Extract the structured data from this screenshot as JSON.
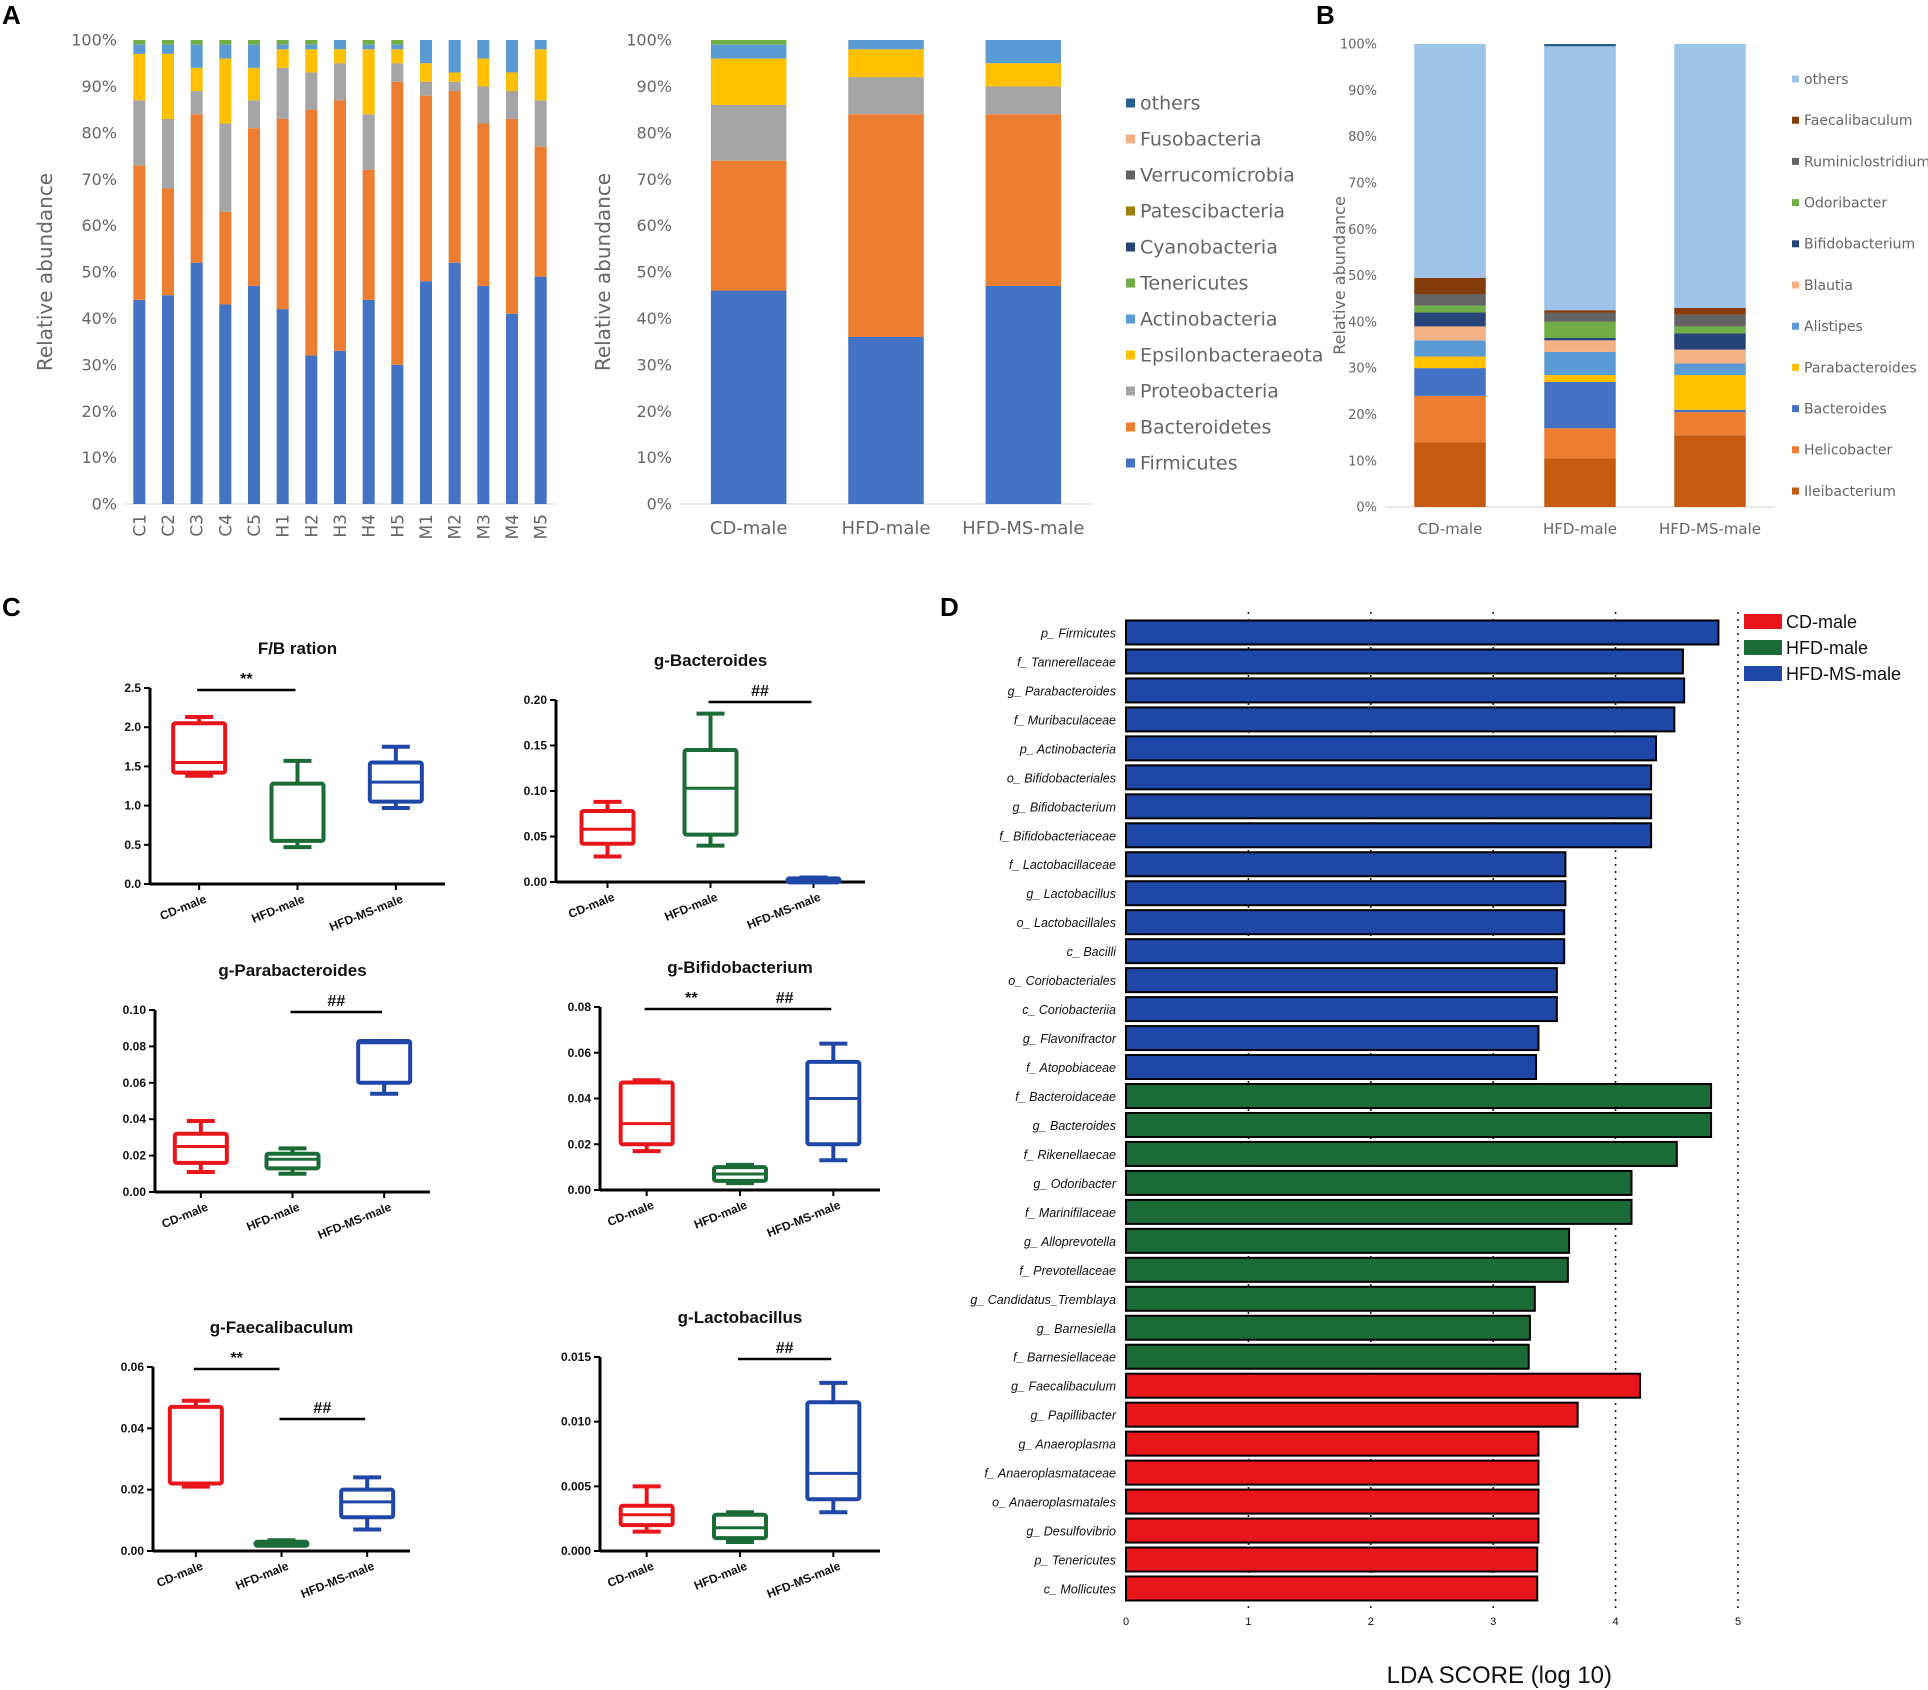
{
  "panel_labels": {
    "A": "A",
    "B": "B",
    "C": "C",
    "D": "D"
  },
  "colors": {
    "Firmicutes": "#4472C4",
    "Bacteroidetes": "#ED7D31",
    "Proteobacteria": "#A5A5A5",
    "Epsilonbacteraeota": "#FFC000",
    "Actinobacteria": "#5B9BD5",
    "Tenericutes": "#70AD47",
    "Cyanobacteria": "#264478",
    "Patescibacteria": "#9E7E0A",
    "Verrucomicrobia": "#636363",
    "Fusobacteria": "#F4B183",
    "others": "#255E91",
    "CD": "#E8161B",
    "HFD": "#1B6B36",
    "HFDMS": "#1F47A8"
  },
  "chart_data": [
    {
      "id": "A1",
      "type": "bar",
      "stacked": true,
      "ylabel": "Relative abundance",
      "ylim": [
        0,
        100
      ],
      "yticks": [
        "0%",
        "10%",
        "20%",
        "30%",
        "40%",
        "50%",
        "60%",
        "70%",
        "80%",
        "90%",
        "100%"
      ],
      "categories": [
        "C1",
        "C2",
        "C3",
        "C4",
        "C5",
        "H1",
        "H2",
        "H3",
        "H4",
        "H5",
        "M1",
        "M2",
        "M3",
        "M4",
        "M5"
      ],
      "series": [
        {
          "name": "Firmicutes",
          "values": [
            44,
            45,
            52,
            43,
            47,
            42,
            32,
            33,
            44,
            30,
            48,
            52,
            47,
            41,
            49
          ]
        },
        {
          "name": "Bacteroidetes",
          "values": [
            29,
            23,
            32,
            20,
            34,
            41,
            53,
            54,
            28,
            61,
            40,
            37,
            35,
            42,
            28
          ]
        },
        {
          "name": "Proteobacteria",
          "values": [
            14,
            15,
            5,
            19,
            6,
            11,
            8,
            8,
            12,
            4,
            3,
            2,
            8,
            6,
            10
          ]
        },
        {
          "name": "Epsilonbacteraeota",
          "values": [
            10,
            14,
            5,
            14,
            7,
            4,
            5,
            3,
            14,
            3,
            4,
            2,
            6,
            4,
            11
          ]
        },
        {
          "name": "Actinobacteria",
          "values": [
            2,
            2,
            5,
            3,
            5,
            1,
            1,
            2,
            1,
            1,
            5,
            7,
            4,
            7,
            2
          ]
        },
        {
          "name": "Tenericutes",
          "values": [
            1,
            1,
            1,
            1,
            1,
            1,
            1,
            0,
            1,
            1,
            0,
            0,
            0,
            0,
            0
          ]
        }
      ]
    },
    {
      "id": "A2",
      "type": "bar",
      "stacked": true,
      "ylabel": "Relative abundance",
      "ylim": [
        0,
        100
      ],
      "yticks": [
        "0%",
        "10%",
        "20%",
        "30%",
        "40%",
        "50%",
        "60%",
        "70%",
        "80%",
        "90%",
        "100%"
      ],
      "categories": [
        "CD-male",
        "HFD-male",
        "HFD-MS-male"
      ],
      "series": [
        {
          "name": "Firmicutes",
          "values": [
            46,
            36,
            47
          ]
        },
        {
          "name": "Bacteroidetes",
          "values": [
            28,
            48,
            37
          ]
        },
        {
          "name": "Proteobacteria",
          "values": [
            12,
            8,
            6
          ]
        },
        {
          "name": "Epsilonbacteraeota",
          "values": [
            10,
            6,
            5
          ]
        },
        {
          "name": "Actinobacteria",
          "values": [
            3,
            2,
            5
          ]
        },
        {
          "name": "Tenericutes",
          "values": [
            1,
            0,
            0
          ]
        }
      ],
      "legend": [
        "others",
        "Fusobacteria",
        "Verrucomicrobia",
        "Patescibacteria",
        "Cyanobacteria",
        "Tenericutes",
        "Actinobacteria",
        "Epsilonbacteraeota",
        "Proteobacteria",
        "Bacteroidetes",
        "Firmicutes"
      ]
    },
    {
      "id": "B",
      "type": "bar",
      "stacked": true,
      "ylabel": "Relative abundance",
      "ylim": [
        0,
        100
      ],
      "yticks": [
        "0%",
        "10%",
        "20%",
        "30%",
        "40%",
        "50%",
        "60%",
        "70%",
        "80%",
        "90%",
        "100%"
      ],
      "categories": [
        "CD-male",
        "HFD-male",
        "HFD-MS-male"
      ],
      "series": [
        {
          "name": "Ileibacterium",
          "color": "#C55A11",
          "values": [
            14,
            10.5,
            15.5
          ]
        },
        {
          "name": "Helicobacter",
          "color": "#ED7D31",
          "values": [
            10,
            6.5,
            5
          ]
        },
        {
          "name": "Bacteroides",
          "color": "#4472C4",
          "values": [
            6,
            10,
            0.5
          ]
        },
        {
          "name": "Parabacteroides",
          "color": "#FFC000",
          "values": [
            2.5,
            1.5,
            7.5
          ]
        },
        {
          "name": "Alistipes",
          "color": "#5B9BD5",
          "values": [
            3.5,
            5,
            2.5
          ]
        },
        {
          "name": "Blautia",
          "color": "#F4B183",
          "values": [
            3,
            2.5,
            3
          ]
        },
        {
          "name": "Bifidobacterium",
          "color": "#264478",
          "values": [
            3,
            0.5,
            3.5
          ]
        },
        {
          "name": "Odoribacter",
          "color": "#70AD47",
          "values": [
            1.5,
            3.5,
            1.5
          ]
        },
        {
          "name": "Ruminiclostridium",
          "color": "#636363",
          "values": [
            2.5,
            2,
            2.5
          ]
        },
        {
          "name": "Faecalibaculum",
          "color": "#843C0C",
          "values": [
            3.5,
            0.5,
            1.5
          ]
        },
        {
          "name": "others",
          "color": "#9DC3E6",
          "values": [
            50.5,
            57,
            57
          ]
        }
      ],
      "legend": [
        "others",
        "Faecalibaculum",
        "Ruminiclostridium",
        "Odoribacter",
        "Bifidobacterium",
        "Blautia",
        "Alistipes",
        "Parabacteroides",
        "Bacteroides",
        "Helicobacter",
        "Ileibacterium"
      ]
    },
    {
      "id": "C1",
      "type": "box",
      "title": "F/B ration",
      "yticks": [
        "0.0",
        "0.5",
        "1.0",
        "1.5",
        "2.0",
        "2.5"
      ],
      "ylim": [
        0,
        2.5
      ],
      "categories": [
        "CD-male",
        "HFD-male",
        "HFD-MS-male"
      ],
      "boxes": [
        {
          "min": 1.38,
          "q1": 1.42,
          "median": 1.55,
          "q3": 2.05,
          "max": 2.13
        },
        {
          "min": 0.47,
          "q1": 0.55,
          "median": 0.55,
          "q3": 1.28,
          "max": 1.57
        },
        {
          "min": 0.97,
          "q1": 1.05,
          "median": 1.3,
          "q3": 1.55,
          "max": 1.75
        }
      ],
      "sig": [
        {
          "from": 0,
          "to": 1,
          "label": "**"
        }
      ]
    },
    {
      "id": "C2",
      "type": "box",
      "title": "g-Bacteroides",
      "yticks": [
        "0.00",
        "0.05",
        "0.10",
        "0.15",
        "0.20"
      ],
      "ylim": [
        0,
        0.2
      ],
      "categories": [
        "CD-male",
        "HFD-male",
        "HFD-MS-male"
      ],
      "boxes": [
        {
          "min": 0.028,
          "q1": 0.042,
          "median": 0.058,
          "q3": 0.078,
          "max": 0.088
        },
        {
          "min": 0.04,
          "q1": 0.052,
          "median": 0.103,
          "q3": 0.145,
          "max": 0.185
        },
        {
          "min": 0.001,
          "q1": 0.002,
          "median": 0.003,
          "q3": 0.004,
          "max": 0.005
        }
      ],
      "sig": [
        {
          "from": 1,
          "to": 2,
          "label": "##"
        }
      ]
    },
    {
      "id": "C3",
      "type": "box",
      "title": "g-Parabacteroides",
      "yticks": [
        "0.00",
        "0.02",
        "0.04",
        "0.06",
        "0.08",
        "0.10"
      ],
      "ylim": [
        0,
        0.1
      ],
      "categories": [
        "CD-male",
        "HFD-male",
        "HFD-MS-male"
      ],
      "boxes": [
        {
          "min": 0.011,
          "q1": 0.016,
          "median": 0.025,
          "q3": 0.032,
          "max": 0.039
        },
        {
          "min": 0.01,
          "q1": 0.013,
          "median": 0.018,
          "q3": 0.021,
          "max": 0.024
        },
        {
          "min": 0.054,
          "q1": 0.06,
          "median": 0.082,
          "q3": 0.083,
          "max": 0.083
        }
      ],
      "sig": [
        {
          "from": 1,
          "to": 2,
          "label": "##"
        }
      ]
    },
    {
      "id": "C4",
      "type": "box",
      "title": "g-Bifidobacterium",
      "yticks": [
        "0.00",
        "0.02",
        "0.04",
        "0.06",
        "0.08"
      ],
      "ylim": [
        0,
        0.08
      ],
      "categories": [
        "CD-male",
        "HFD-male",
        "HFD-MS-male"
      ],
      "boxes": [
        {
          "min": 0.017,
          "q1": 0.02,
          "median": 0.029,
          "q3": 0.047,
          "max": 0.048
        },
        {
          "min": 0.003,
          "q1": 0.004,
          "median": 0.007,
          "q3": 0.01,
          "max": 0.011
        },
        {
          "min": 0.013,
          "q1": 0.02,
          "median": 0.04,
          "q3": 0.056,
          "max": 0.064
        }
      ],
      "sig": [
        {
          "from": 0,
          "to": 1,
          "label": "**"
        },
        {
          "from": 1,
          "to": 2,
          "label": "##"
        }
      ]
    },
    {
      "id": "C5",
      "type": "box",
      "title": "g-Faecalibaculum",
      "yticks": [
        "0.00",
        "0.02",
        "0.04",
        "0.06"
      ],
      "ylim": [
        0,
        0.06
      ],
      "categories": [
        "CD-male",
        "HFD-male",
        "HFD-MS-male"
      ],
      "boxes": [
        {
          "min": 0.021,
          "q1": 0.022,
          "median": 0.022,
          "q3": 0.047,
          "max": 0.049
        },
        {
          "min": 0.002,
          "q1": 0.0022,
          "median": 0.0025,
          "q3": 0.003,
          "max": 0.0035
        },
        {
          "min": 0.007,
          "q1": 0.011,
          "median": 0.016,
          "q3": 0.02,
          "max": 0.024
        }
      ],
      "sig": [
        {
          "from": 0,
          "to": 1,
          "label": "**"
        },
        {
          "from": 1,
          "to": 2,
          "label": "##"
        }
      ]
    },
    {
      "id": "C6",
      "type": "box",
      "title": "g-Lactobacillus",
      "yticks": [
        "0.000",
        "0.005",
        "0.010",
        "0.015"
      ],
      "ylim": [
        0,
        0.015
      ],
      "categories": [
        "CD-male",
        "HFD-male",
        "HFD-MS-male"
      ],
      "boxes": [
        {
          "min": 0.0015,
          "q1": 0.002,
          "median": 0.0028,
          "q3": 0.0035,
          "max": 0.005
        },
        {
          "min": 0.0007,
          "q1": 0.001,
          "median": 0.0018,
          "q3": 0.0028,
          "max": 0.003
        },
        {
          "min": 0.003,
          "q1": 0.004,
          "median": 0.006,
          "q3": 0.0115,
          "max": 0.013
        }
      ],
      "sig": [
        {
          "from": 1,
          "to": 2,
          "label": "##"
        }
      ]
    },
    {
      "id": "D",
      "type": "bar",
      "orientation": "horizontal",
      "xlabel": "LDA SCORE (log 10)",
      "xlim": [
        0,
        5
      ],
      "xticks": [
        "0",
        "1",
        "2",
        "3",
        "4",
        "5"
      ],
      "legend": [
        {
          "name": "CD-male",
          "group": "CD"
        },
        {
          "name": "HFD-male",
          "group": "HFD"
        },
        {
          "name": "HFD-MS-male",
          "group": "HFDMS"
        }
      ],
      "bars": [
        {
          "prefix": "p_",
          "name": "Firmicutes",
          "value": 4.84,
          "group": "HFDMS"
        },
        {
          "prefix": "f_",
          "name": "Tannerellaceae",
          "value": 4.55,
          "group": "HFDMS"
        },
        {
          "prefix": "g_",
          "name": "Parabacteroides",
          "value": 4.56,
          "group": "HFDMS"
        },
        {
          "prefix": "f_",
          "name": "Muribaculaceae",
          "value": 4.48,
          "group": "HFDMS"
        },
        {
          "prefix": "p_",
          "name": "Actinobacteria",
          "value": 4.33,
          "group": "HFDMS"
        },
        {
          "prefix": "o_",
          "name": "Bifidobacteriales",
          "value": 4.29,
          "group": "HFDMS"
        },
        {
          "prefix": "g_",
          "name": "Bifidobacterium",
          "value": 4.29,
          "group": "HFDMS"
        },
        {
          "prefix": "f_",
          "name": "Bifidobacteriaceae",
          "value": 4.29,
          "group": "HFDMS"
        },
        {
          "prefix": "f_",
          "name": "Lactobacillaceae",
          "value": 3.59,
          "group": "HFDMS"
        },
        {
          "prefix": "g_",
          "name": "Lactobacillus",
          "value": 3.59,
          "group": "HFDMS"
        },
        {
          "prefix": "o_",
          "name": "Lactobacillales",
          "value": 3.58,
          "group": "HFDMS"
        },
        {
          "prefix": "c_",
          "name": "Bacilli",
          "value": 3.58,
          "group": "HFDMS"
        },
        {
          "prefix": "o_",
          "name": "Coriobacteriales",
          "value": 3.52,
          "group": "HFDMS"
        },
        {
          "prefix": "c_",
          "name": "Coriobacteriia",
          "value": 3.52,
          "group": "HFDMS"
        },
        {
          "prefix": "g_",
          "name": "Flavonifractor",
          "value": 3.37,
          "group": "HFDMS"
        },
        {
          "prefix": "f_",
          "name": "Atopobiaceae",
          "value": 3.35,
          "group": "HFDMS"
        },
        {
          "prefix": "f_",
          "name": "Bacteroidaceae",
          "value": 4.78,
          "group": "HFD"
        },
        {
          "prefix": "g_",
          "name": "Bacteroides",
          "value": 4.78,
          "group": "HFD"
        },
        {
          "prefix": "f_",
          "name": "Rikenellaecae",
          "value": 4.5,
          "group": "HFD"
        },
        {
          "prefix": "g_",
          "name": "Odoribacter",
          "value": 4.13,
          "group": "HFD"
        },
        {
          "prefix": "f_",
          "name": "Marinifilaceae",
          "value": 4.13,
          "group": "HFD"
        },
        {
          "prefix": "g_",
          "name": "Alloprevotella",
          "value": 3.62,
          "group": "HFD"
        },
        {
          "prefix": "f_",
          "name": "Prevotellaceae",
          "value": 3.61,
          "group": "HFD"
        },
        {
          "prefix": "g_",
          "name": "Candidatus_Tremblaya",
          "value": 3.34,
          "group": "HFD"
        },
        {
          "prefix": "g_",
          "name": "Barnesiella",
          "value": 3.3,
          "group": "HFD"
        },
        {
          "prefix": "f_",
          "name": "Barnesiellaceae",
          "value": 3.29,
          "group": "HFD"
        },
        {
          "prefix": "g_",
          "name": "Faecalibaculum",
          "value": 4.2,
          "group": "CD"
        },
        {
          "prefix": "g_",
          "name": "Papillibacter",
          "value": 3.69,
          "group": "CD"
        },
        {
          "prefix": "g_",
          "name": "Anaeroplasma",
          "value": 3.37,
          "group": "CD"
        },
        {
          "prefix": "f_",
          "name": "Anaeroplasmataceae",
          "value": 3.37,
          "group": "CD"
        },
        {
          "prefix": "o_",
          "name": "Anaeroplasmatales",
          "value": 3.37,
          "group": "CD"
        },
        {
          "prefix": "g_",
          "name": "Desulfovibrio",
          "value": 3.37,
          "group": "CD"
        },
        {
          "prefix": "p_",
          "name": "Tenericutes",
          "value": 3.36,
          "group": "CD"
        },
        {
          "prefix": "c_",
          "name": "Mollicutes",
          "value": 3.36,
          "group": "CD"
        }
      ]
    }
  ]
}
